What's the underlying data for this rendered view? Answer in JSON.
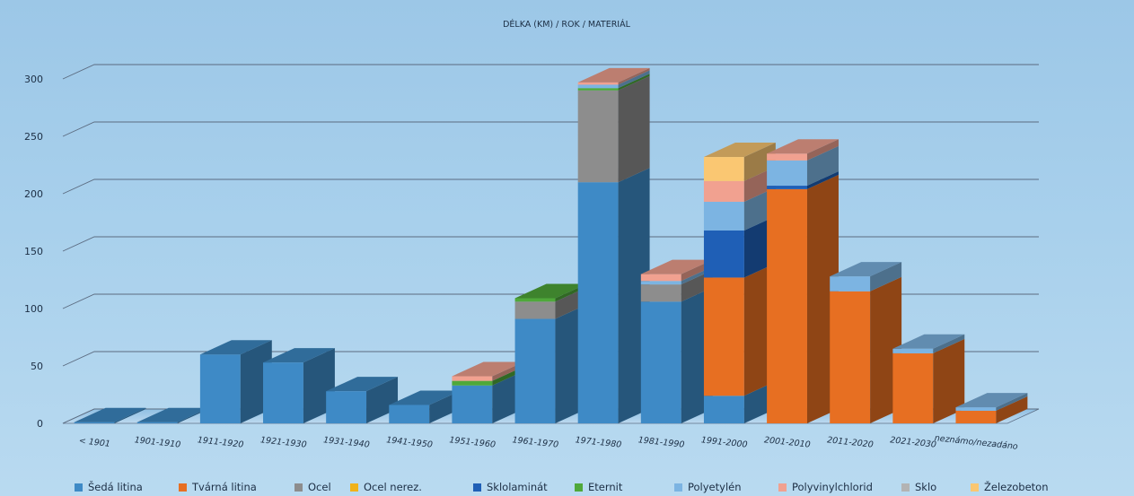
{
  "chart_data": {
    "type": "bar",
    "stacked": true,
    "three_d": true,
    "title": "DÉLKA (KM) / ROK / MATERIÁL",
    "xlabel": "",
    "ylabel": "",
    "ylim": [
      0,
      300
    ],
    "yticks": [
      0,
      50,
      100,
      150,
      200,
      250,
      300
    ],
    "grid": true,
    "legend_position": "bottom",
    "categories": [
      "< 1901",
      "1901-1910",
      "1911-1920",
      "1921-1930",
      "1931-1940",
      "1941-1950",
      "1951-1960",
      "1961-1970",
      "1971-1980",
      "1981-1990",
      "1991-2000",
      "2001-2010",
      "2011-2020",
      "2021-2030",
      "neznámo/nezadáno"
    ],
    "series": [
      {
        "name": "Šedá litina",
        "color": "#3e8ac6",
        "values": [
          1,
          1,
          60,
          53,
          28,
          16,
          33,
          91,
          210,
          106,
          24,
          0,
          0,
          0,
          0
        ]
      },
      {
        "name": "Tvárná litina",
        "color": "#e76f22",
        "values": [
          0,
          0,
          0,
          0,
          0,
          0,
          0,
          0,
          0,
          0,
          103,
          204,
          115,
          61,
          11
        ]
      },
      {
        "name": "Ocel",
        "color": "#8d8d8d",
        "values": [
          0,
          0,
          0,
          0,
          0,
          0,
          0,
          15,
          80,
          15,
          0,
          0,
          0,
          0,
          0
        ]
      },
      {
        "name": "Ocel nerez.",
        "color": "#f0b21a",
        "values": [
          0,
          0,
          0,
          0,
          0,
          0,
          0,
          0,
          0,
          0,
          0,
          0,
          0,
          0,
          0
        ]
      },
      {
        "name": "Sklolaminát",
        "color": "#1f5fb6",
        "values": [
          0,
          0,
          0,
          0,
          0,
          0,
          0,
          0,
          0,
          0,
          41,
          3,
          0,
          0,
          0
        ]
      },
      {
        "name": "Eternit",
        "color": "#4fa83a",
        "values": [
          0,
          0,
          0,
          0,
          0,
          0,
          4,
          3,
          2,
          0,
          0,
          0,
          0,
          0,
          0
        ]
      },
      {
        "name": "Polyetylén",
        "color": "#7cb4e2",
        "values": [
          0,
          0,
          0,
          0,
          0,
          0,
          0,
          0,
          3,
          3,
          25,
          22,
          13,
          4,
          3
        ]
      },
      {
        "name": "Polyvinylchlorid",
        "color": "#f1a190",
        "values": [
          0,
          0,
          0,
          0,
          0,
          0,
          4,
          0,
          2,
          6,
          18,
          6,
          0,
          0,
          0
        ]
      },
      {
        "name": "Sklo",
        "color": "#b3b3b3",
        "values": [
          0,
          0,
          0,
          0,
          0,
          0,
          0,
          0,
          0,
          0,
          0,
          0,
          0,
          0,
          0
        ]
      },
      {
        "name": "Železobeton",
        "color": "#fac772",
        "values": [
          0,
          0,
          0,
          0,
          0,
          0,
          0,
          0,
          0,
          0,
          21,
          0,
          0,
          0,
          0
        ]
      }
    ]
  }
}
